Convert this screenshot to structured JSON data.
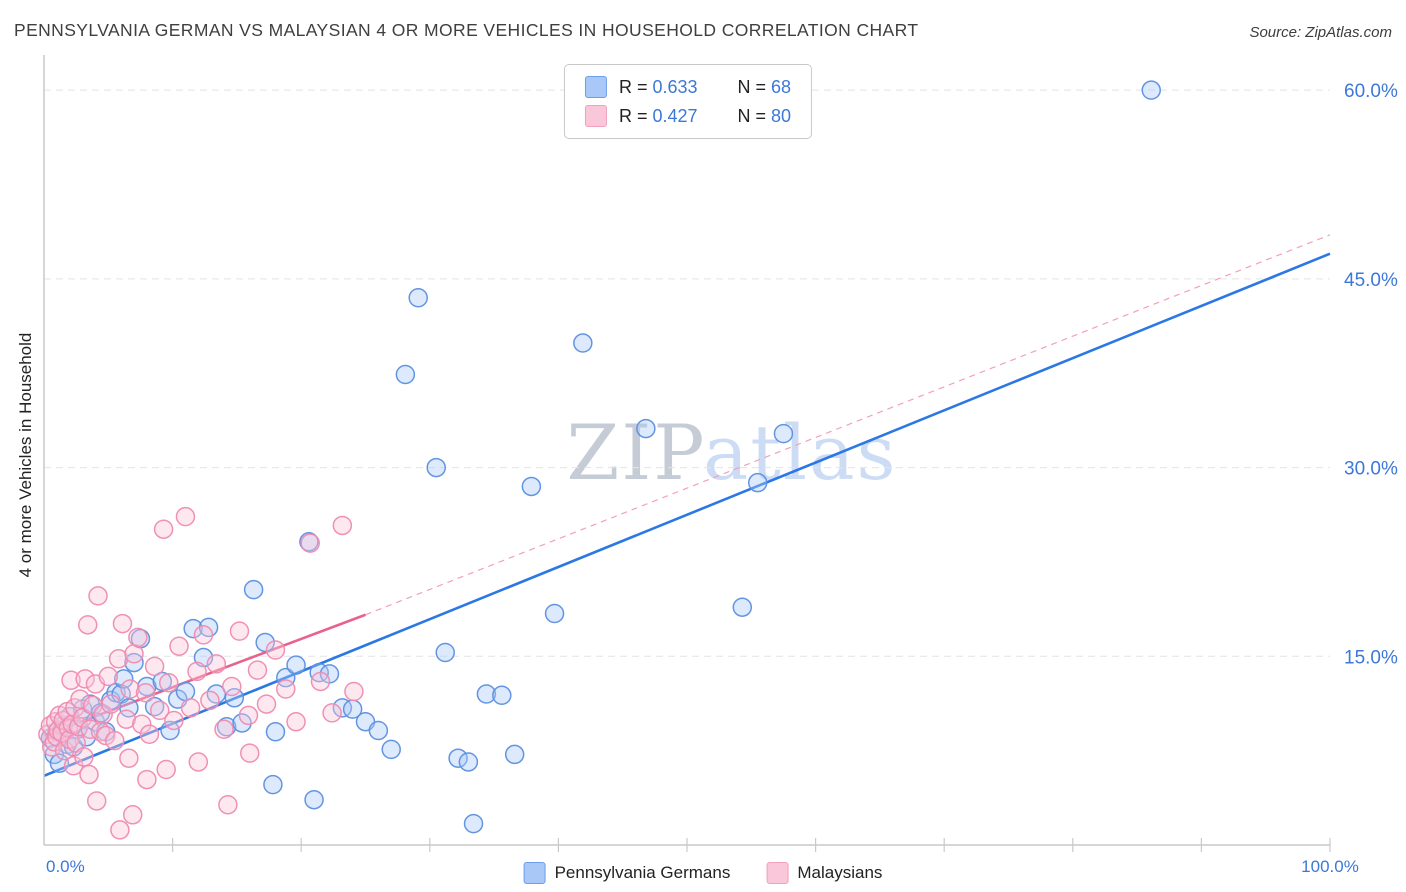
{
  "header": {
    "title": "PENNSYLVANIA GERMAN VS MALAYSIAN 4 OR MORE VEHICLES IN HOUSEHOLD CORRELATION CHART",
    "source": "Source: ZipAtlas.com"
  },
  "legend_box": {
    "rows": [
      {
        "series": "pennsylvania-germans",
        "r_label": "R = ",
        "r": "0.633",
        "n_label": "N = ",
        "n": "68"
      },
      {
        "series": "malaysians",
        "r_label": "R = ",
        "r": "0.427",
        "n_label": "N = ",
        "n": "80"
      }
    ]
  },
  "bottom_legend": [
    {
      "label": "Pennsylvania Germans"
    },
    {
      "label": "Malaysians"
    }
  ],
  "watermark": {
    "part1": "ZIP",
    "part2": "atlas"
  },
  "colors": {
    "blue_stroke": "#5b8fe0",
    "blue_fill": "#a9c7f7",
    "pink_stroke": "#ef8bb0",
    "pink_fill": "#f9c6da",
    "trend_blue": "#2b78e4",
    "trend_pink": "#e8638c",
    "axis_text_blue": "#3c78d8",
    "grid": "#e4e4e4"
  },
  "chart_data": {
    "type": "scatter",
    "title": "PENNSYLVANIA GERMAN VS MALAYSIAN 4 OR MORE VEHICLES IN HOUSEHOLD CORRELATION CHART",
    "xlabel": "",
    "ylabel": "4 or more Vehicles in Household",
    "xlim": [
      0,
      100
    ],
    "ylim": [
      0,
      62
    ],
    "grid": "horizontal-dashed",
    "legend_position": "bottom",
    "x_ticks": [
      10,
      20,
      30,
      40,
      50,
      60,
      70,
      80,
      90,
      100
    ],
    "x_edge_labels": [
      {
        "value": 0,
        "label": "0.0%"
      },
      {
        "value": 100,
        "label": "100.0%"
      }
    ],
    "y_ticks": [
      {
        "value": 60,
        "label": "60.0%"
      },
      {
        "value": 45,
        "label": "45.0%"
      },
      {
        "value": 30,
        "label": "30.0%"
      },
      {
        "value": 15,
        "label": "15.0%"
      }
    ],
    "series": [
      {
        "id": "pennsylvania-germans",
        "name": "Pennsylvania Germans",
        "R": 0.633,
        "N": 68,
        "stroke": "#5b8fe0",
        "fill": "#a9c7f7",
        "points": [
          [
            0.5,
            8.5
          ],
          [
            0.8,
            7.2
          ],
          [
            1.0,
            9.0
          ],
          [
            1.2,
            6.5
          ],
          [
            1.5,
            9.5
          ],
          [
            1.8,
            8.0
          ],
          [
            2.0,
            10.2
          ],
          [
            2.3,
            7.8
          ],
          [
            2.6,
            9.2
          ],
          [
            3.0,
            10.8
          ],
          [
            3.3,
            8.6
          ],
          [
            3.6,
            11.2
          ],
          [
            4.0,
            9.8
          ],
          [
            4.4,
            10.5
          ],
          [
            4.8,
            9.0
          ],
          [
            5.2,
            11.5
          ],
          [
            5.6,
            12.1
          ],
          [
            6.0,
            12.0
          ],
          [
            6.2,
            13.2
          ],
          [
            6.6,
            10.9
          ],
          [
            7.0,
            14.5
          ],
          [
            7.5,
            16.4
          ],
          [
            8.0,
            12.6
          ],
          [
            8.6,
            11.0
          ],
          [
            9.2,
            13.0
          ],
          [
            9.8,
            9.1
          ],
          [
            10.4,
            11.6
          ],
          [
            11.0,
            12.2
          ],
          [
            11.6,
            17.2
          ],
          [
            12.4,
            14.9
          ],
          [
            12.8,
            17.3
          ],
          [
            13.4,
            12.0
          ],
          [
            14.2,
            9.4
          ],
          [
            14.8,
            11.7
          ],
          [
            15.4,
            9.7
          ],
          [
            16.3,
            20.3
          ],
          [
            17.2,
            16.1
          ],
          [
            17.8,
            4.8
          ],
          [
            18.0,
            9.0
          ],
          [
            18.8,
            13.3
          ],
          [
            19.6,
            14.3
          ],
          [
            20.6,
            24.1
          ],
          [
            21.0,
            3.6
          ],
          [
            21.4,
            13.7
          ],
          [
            22.2,
            13.6
          ],
          [
            23.2,
            10.9
          ],
          [
            24.0,
            10.8
          ],
          [
            25.0,
            9.8
          ],
          [
            26.0,
            9.1
          ],
          [
            27.0,
            7.6
          ],
          [
            28.1,
            37.4
          ],
          [
            29.1,
            43.5
          ],
          [
            30.5,
            30.0
          ],
          [
            31.2,
            15.3
          ],
          [
            32.2,
            6.9
          ],
          [
            33.0,
            6.6
          ],
          [
            33.4,
            1.7
          ],
          [
            34.4,
            12.0
          ],
          [
            35.6,
            11.9
          ],
          [
            36.6,
            7.2
          ],
          [
            37.9,
            28.5
          ],
          [
            39.7,
            18.4
          ],
          [
            41.9,
            39.9
          ],
          [
            46.8,
            33.1
          ],
          [
            54.3,
            18.9
          ],
          [
            55.5,
            28.8
          ],
          [
            57.5,
            32.7
          ],
          [
            86.1,
            60.0
          ]
        ]
      },
      {
        "id": "malaysians",
        "name": "Malaysians",
        "R": 0.427,
        "N": 80,
        "stroke": "#ef8bb0",
        "fill": "#f9c6da",
        "points": [
          [
            0.3,
            8.8
          ],
          [
            0.5,
            9.5
          ],
          [
            0.6,
            7.8
          ],
          [
            0.8,
            8.2
          ],
          [
            0.9,
            9.8
          ],
          [
            1.0,
            8.6
          ],
          [
            1.1,
            9.1
          ],
          [
            1.2,
            10.3
          ],
          [
            1.4,
            8.9
          ],
          [
            1.5,
            9.9
          ],
          [
            1.6,
            7.5
          ],
          [
            1.8,
            10.6
          ],
          [
            1.9,
            9.3
          ],
          [
            2.0,
            8.4
          ],
          [
            2.1,
            13.1
          ],
          [
            2.2,
            9.6
          ],
          [
            2.3,
            6.3
          ],
          [
            2.4,
            10.9
          ],
          [
            2.5,
            8.1
          ],
          [
            2.7,
            9.4
          ],
          [
            2.8,
            11.6
          ],
          [
            3.0,
            10.1
          ],
          [
            3.1,
            7.0
          ],
          [
            3.2,
            13.2
          ],
          [
            3.4,
            17.5
          ],
          [
            3.5,
            5.6
          ],
          [
            3.6,
            9.2
          ],
          [
            3.8,
            11.1
          ],
          [
            4.0,
            12.8
          ],
          [
            4.1,
            3.5
          ],
          [
            4.2,
            19.8
          ],
          [
            4.4,
            9.0
          ],
          [
            4.6,
            10.4
          ],
          [
            4.8,
            8.7
          ],
          [
            5.0,
            13.4
          ],
          [
            5.2,
            11.2
          ],
          [
            5.5,
            8.3
          ],
          [
            5.8,
            14.8
          ],
          [
            5.9,
            1.2
          ],
          [
            6.1,
            17.6
          ],
          [
            6.4,
            10.0
          ],
          [
            6.6,
            6.9
          ],
          [
            6.7,
            12.4
          ],
          [
            6.9,
            2.4
          ],
          [
            7.0,
            15.2
          ],
          [
            7.3,
            16.5
          ],
          [
            7.6,
            9.6
          ],
          [
            7.9,
            12.1
          ],
          [
            8.0,
            5.2
          ],
          [
            8.2,
            8.8
          ],
          [
            8.6,
            14.2
          ],
          [
            9.0,
            10.7
          ],
          [
            9.3,
            25.1
          ],
          [
            9.5,
            6.0
          ],
          [
            9.7,
            12.9
          ],
          [
            10.1,
            9.9
          ],
          [
            10.5,
            15.8
          ],
          [
            11.0,
            26.1
          ],
          [
            11.4,
            10.9
          ],
          [
            11.9,
            13.8
          ],
          [
            12.0,
            6.6
          ],
          [
            12.4,
            16.7
          ],
          [
            12.9,
            11.5
          ],
          [
            13.4,
            14.4
          ],
          [
            14.0,
            9.2
          ],
          [
            14.3,
            3.2
          ],
          [
            14.6,
            12.6
          ],
          [
            15.2,
            17.0
          ],
          [
            15.9,
            10.3
          ],
          [
            16.0,
            7.3
          ],
          [
            16.6,
            13.9
          ],
          [
            17.3,
            11.2
          ],
          [
            18.0,
            15.5
          ],
          [
            18.8,
            12.4
          ],
          [
            19.6,
            9.8
          ],
          [
            20.7,
            24.0
          ],
          [
            21.5,
            13.0
          ],
          [
            22.4,
            10.5
          ],
          [
            23.2,
            25.4
          ],
          [
            24.1,
            12.2
          ]
        ]
      }
    ],
    "trendlines": [
      {
        "series": "pennsylvania-germans",
        "style": "solid",
        "color": "#2b78e4",
        "width": 2.6,
        "x1": 0,
        "y1": 5.5,
        "x2": 100,
        "y2": 47.0
      },
      {
        "series": "malaysians",
        "style": "solid",
        "color": "#e8638c",
        "width": 2.6,
        "x1": 0,
        "y1": 8.7,
        "x2": 25,
        "y2": 18.3
      },
      {
        "series": "malaysians",
        "style": "dashed",
        "color": "#f2a0bb",
        "width": 1.2,
        "x1": 25,
        "y1": 18.3,
        "x2": 100,
        "y2": 48.5
      }
    ]
  }
}
